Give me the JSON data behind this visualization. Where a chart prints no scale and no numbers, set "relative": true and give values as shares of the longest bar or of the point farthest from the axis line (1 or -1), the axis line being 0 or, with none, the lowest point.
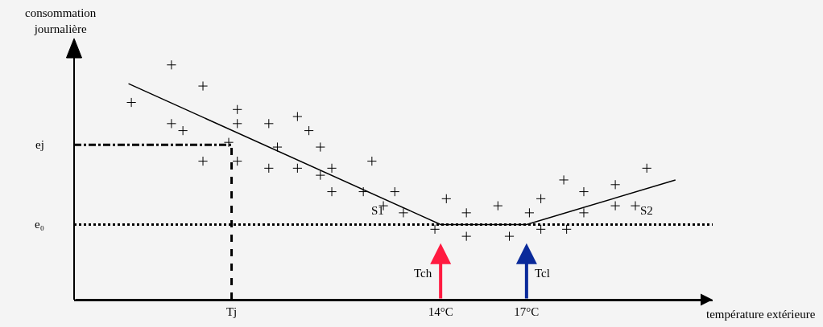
{
  "chart_data": {
    "type": "scatter",
    "relative": true,
    "xlabel": "température extérieure",
    "ylabel": "consommation journalière",
    "xlim": [
      1.2,
      23.5
    ],
    "xticks": [
      {
        "value": 6.7,
        "label": "Tj"
      },
      {
        "value": 14,
        "label": "14°C"
      },
      {
        "value": 17,
        "label": "17°C"
      }
    ],
    "grid": false,
    "series": [
      {
        "marker": "cross",
        "color": "#000000",
        "x": [
          4.6,
          5.7,
          3.2,
          6.9,
          9.0,
          4.6,
          6.9,
          8.0,
          5.0,
          9.4,
          6.6,
          8.3,
          9.8,
          5.7,
          6.9,
          11.6,
          8.0,
          9.0,
          10.2,
          9.8,
          10.2,
          11.3,
          12.4,
          12.0,
          12.7,
          14.2,
          13.8,
          14.9,
          14.9,
          16.0,
          16.4,
          17.1,
          17.5,
          17.5,
          18.4,
          18.3,
          19.0,
          19.0,
          20.1,
          20.1,
          20.8,
          21.2
        ],
        "values": [
          1.0,
          0.91,
          0.84,
          0.81,
          0.78,
          0.75,
          0.75,
          0.75,
          0.72,
          0.72,
          0.67,
          0.65,
          0.65,
          0.59,
          0.59,
          0.59,
          0.56,
          0.56,
          0.56,
          0.53,
          0.46,
          0.46,
          0.46,
          0.4,
          0.37,
          0.43,
          0.3,
          0.37,
          0.27,
          0.4,
          0.27,
          0.37,
          0.43,
          0.3,
          0.3,
          0.51,
          0.46,
          0.37,
          0.49,
          0.4,
          0.4,
          0.56
        ]
      },
      {
        "type": "line",
        "marker": "none",
        "line_style": "solid",
        "color": "#000000",
        "x": [
          3.1,
          14,
          17,
          22.2
        ],
        "values": [
          0.92,
          0.32,
          0.32,
          0.51
        ]
      }
    ],
    "ref_lines": [
      {
        "axis": "y",
        "value": 0.32,
        "label": "e₀",
        "line_style": "dotted",
        "color": "#000000"
      },
      {
        "axis": "y",
        "value": 0.66,
        "label": "ej",
        "line_style": "dashdot",
        "color": "#000000"
      },
      {
        "axis": "x",
        "value": 6.7,
        "label": null,
        "line_style": "dashed",
        "color": "#000000"
      }
    ],
    "annotations": [
      "Tch",
      "Tcl",
      "S1",
      "S2"
    ]
  }
}
